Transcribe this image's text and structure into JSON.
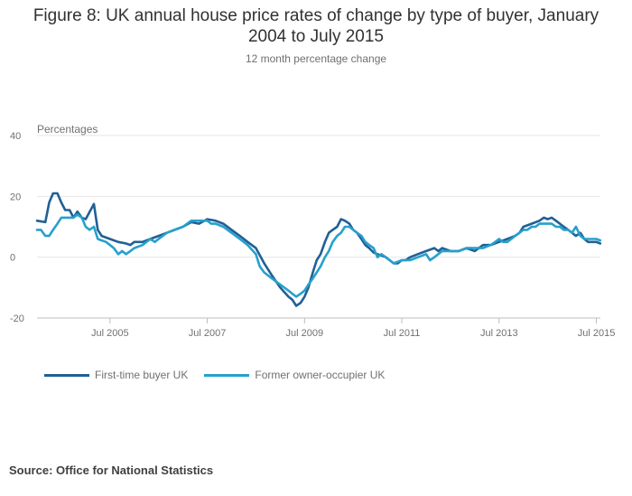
{
  "title": "Figure 8: UK annual house price rates of change by type of buyer, January 2004 to July 2015",
  "subtitle": "12 month percentage change",
  "source": "Source: Office for National Statistics",
  "colors": {
    "series1": "#206095",
    "series2": "#27a0cc",
    "grid": "#e6e6e6",
    "axis": "#707071"
  },
  "chart_data": {
    "type": "line",
    "title": "Figure 8: UK annual house price rates of change by type of buyer, January 2004 to July 2015",
    "subtitle": "12 month percentage change",
    "ylabel": "Percentages",
    "xlabel": "",
    "ylim": [
      -20,
      40
    ],
    "yticks": [
      -20,
      0,
      20,
      40
    ],
    "xlim": [
      2004.0,
      2015.583
    ],
    "xticks": [
      {
        "x": 2005.5,
        "label": "Jul 2005"
      },
      {
        "x": 2007.5,
        "label": "Jul 2007"
      },
      {
        "x": 2009.5,
        "label": "Jul 2009"
      },
      {
        "x": 2011.5,
        "label": "Jul 2011"
      },
      {
        "x": 2013.5,
        "label": "Jul 2013"
      },
      {
        "x": 2015.5,
        "label": "Jul 2015"
      }
    ],
    "legend_position": "bottom-left",
    "series": [
      {
        "name": "First-time buyer UK",
        "points": [
          [
            2004.0,
            12
          ],
          [
            2004.17,
            11.5
          ],
          [
            2004.25,
            18
          ],
          [
            2004.33,
            21
          ],
          [
            2004.42,
            21
          ],
          [
            2004.5,
            18
          ],
          [
            2004.58,
            15.5
          ],
          [
            2004.67,
            15.5
          ],
          [
            2004.75,
            13
          ],
          [
            2004.83,
            15
          ],
          [
            2004.92,
            13
          ],
          [
            2005.0,
            12.5
          ],
          [
            2005.17,
            17.5
          ],
          [
            2005.25,
            9
          ],
          [
            2005.33,
            7
          ],
          [
            2005.5,
            6
          ],
          [
            2005.67,
            5
          ],
          [
            2005.83,
            4.5
          ],
          [
            2005.92,
            4
          ],
          [
            2006.0,
            5
          ],
          [
            2006.17,
            5
          ],
          [
            2006.33,
            6
          ],
          [
            2006.5,
            7
          ],
          [
            2006.67,
            8
          ],
          [
            2006.83,
            9
          ],
          [
            2007.0,
            10
          ],
          [
            2007.17,
            11.5
          ],
          [
            2007.33,
            11
          ],
          [
            2007.5,
            12.5
          ],
          [
            2007.67,
            12
          ],
          [
            2007.83,
            11
          ],
          [
            2008.0,
            9
          ],
          [
            2008.17,
            7
          ],
          [
            2008.33,
            5
          ],
          [
            2008.5,
            3
          ],
          [
            2008.67,
            -2
          ],
          [
            2008.83,
            -6
          ],
          [
            2009.0,
            -10
          ],
          [
            2009.17,
            -13
          ],
          [
            2009.25,
            -14
          ],
          [
            2009.33,
            -16
          ],
          [
            2009.42,
            -15
          ],
          [
            2009.5,
            -13
          ],
          [
            2009.58,
            -10
          ],
          [
            2009.67,
            -5
          ],
          [
            2009.75,
            -1
          ],
          [
            2009.83,
            1
          ],
          [
            2009.92,
            5
          ],
          [
            2010.0,
            8
          ],
          [
            2010.08,
            9
          ],
          [
            2010.17,
            10
          ],
          [
            2010.25,
            12.5
          ],
          [
            2010.33,
            12
          ],
          [
            2010.42,
            11
          ],
          [
            2010.5,
            9
          ],
          [
            2010.58,
            8
          ],
          [
            2010.67,
            6
          ],
          [
            2010.75,
            4
          ],
          [
            2010.83,
            3
          ],
          [
            2010.92,
            1.5
          ],
          [
            2011.0,
            1
          ],
          [
            2011.17,
            0
          ],
          [
            2011.25,
            -1
          ],
          [
            2011.33,
            -2
          ],
          [
            2011.42,
            -2
          ],
          [
            2011.5,
            -1
          ],
          [
            2011.58,
            -1
          ],
          [
            2011.67,
            0
          ],
          [
            2011.83,
            1
          ],
          [
            2012.0,
            2
          ],
          [
            2012.17,
            3
          ],
          [
            2012.25,
            2
          ],
          [
            2012.33,
            3
          ],
          [
            2012.5,
            2
          ],
          [
            2012.67,
            2
          ],
          [
            2012.83,
            3
          ],
          [
            2013.0,
            2
          ],
          [
            2013.17,
            4
          ],
          [
            2013.33,
            4
          ],
          [
            2013.5,
            5
          ],
          [
            2013.67,
            6
          ],
          [
            2013.83,
            7
          ],
          [
            2013.92,
            8
          ],
          [
            2014.0,
            10
          ],
          [
            2014.17,
            11
          ],
          [
            2014.33,
            12
          ],
          [
            2014.42,
            13
          ],
          [
            2014.5,
            12.5
          ],
          [
            2014.58,
            13
          ],
          [
            2014.67,
            12
          ],
          [
            2014.75,
            11
          ],
          [
            2014.83,
            10
          ],
          [
            2014.92,
            9
          ],
          [
            2015.0,
            8
          ],
          [
            2015.08,
            7
          ],
          [
            2015.17,
            8
          ],
          [
            2015.25,
            6
          ],
          [
            2015.33,
            5
          ],
          [
            2015.42,
            5
          ],
          [
            2015.5,
            5
          ],
          [
            2015.58,
            4.5
          ]
        ]
      },
      {
        "name": "Former owner-occupier UK",
        "points": [
          [
            2004.0,
            9
          ],
          [
            2004.08,
            9
          ],
          [
            2004.17,
            7
          ],
          [
            2004.25,
            7
          ],
          [
            2004.33,
            9
          ],
          [
            2004.42,
            11
          ],
          [
            2004.5,
            13
          ],
          [
            2004.58,
            13
          ],
          [
            2004.75,
            13
          ],
          [
            2004.83,
            14
          ],
          [
            2004.92,
            13
          ],
          [
            2005.0,
            10
          ],
          [
            2005.08,
            9
          ],
          [
            2005.17,
            10
          ],
          [
            2005.25,
            6
          ],
          [
            2005.33,
            5.5
          ],
          [
            2005.42,
            5
          ],
          [
            2005.5,
            4
          ],
          [
            2005.58,
            3
          ],
          [
            2005.67,
            1
          ],
          [
            2005.75,
            2
          ],
          [
            2005.83,
            1
          ],
          [
            2005.92,
            2
          ],
          [
            2006.0,
            3
          ],
          [
            2006.17,
            4
          ],
          [
            2006.33,
            6
          ],
          [
            2006.42,
            5
          ],
          [
            2006.5,
            6
          ],
          [
            2006.67,
            8
          ],
          [
            2006.83,
            9
          ],
          [
            2007.0,
            10
          ],
          [
            2007.17,
            12
          ],
          [
            2007.33,
            12
          ],
          [
            2007.5,
            12
          ],
          [
            2007.58,
            11
          ],
          [
            2007.67,
            11
          ],
          [
            2007.83,
            10
          ],
          [
            2008.0,
            8
          ],
          [
            2008.17,
            6
          ],
          [
            2008.33,
            4
          ],
          [
            2008.5,
            1
          ],
          [
            2008.58,
            -3
          ],
          [
            2008.67,
            -5
          ],
          [
            2008.75,
            -6
          ],
          [
            2008.83,
            -7
          ],
          [
            2009.0,
            -9
          ],
          [
            2009.17,
            -11
          ],
          [
            2009.25,
            -12
          ],
          [
            2009.33,
            -13
          ],
          [
            2009.42,
            -12
          ],
          [
            2009.5,
            -11
          ],
          [
            2009.58,
            -9
          ],
          [
            2009.67,
            -7
          ],
          [
            2009.75,
            -5
          ],
          [
            2009.83,
            -3
          ],
          [
            2009.92,
            0
          ],
          [
            2010.0,
            2
          ],
          [
            2010.08,
            5
          ],
          [
            2010.17,
            7
          ],
          [
            2010.25,
            8
          ],
          [
            2010.33,
            10
          ],
          [
            2010.42,
            10
          ],
          [
            2010.5,
            9
          ],
          [
            2010.58,
            8
          ],
          [
            2010.67,
            7
          ],
          [
            2010.75,
            5
          ],
          [
            2010.83,
            4
          ],
          [
            2010.92,
            3
          ],
          [
            2011.0,
            0
          ],
          [
            2011.08,
            1
          ],
          [
            2011.17,
            0
          ],
          [
            2011.25,
            -1
          ],
          [
            2011.33,
            -2
          ],
          [
            2011.42,
            -1.5
          ],
          [
            2011.5,
            -1
          ],
          [
            2011.67,
            -1
          ],
          [
            2011.83,
            0
          ],
          [
            2012.0,
            1
          ],
          [
            2012.08,
            -1
          ],
          [
            2012.17,
            0
          ],
          [
            2012.25,
            1
          ],
          [
            2012.33,
            2
          ],
          [
            2012.5,
            2
          ],
          [
            2012.67,
            2
          ],
          [
            2012.83,
            3
          ],
          [
            2013.0,
            3
          ],
          [
            2013.17,
            3
          ],
          [
            2013.33,
            4
          ],
          [
            2013.42,
            5
          ],
          [
            2013.5,
            6
          ],
          [
            2013.58,
            5
          ],
          [
            2013.67,
            5
          ],
          [
            2013.75,
            6
          ],
          [
            2013.83,
            7
          ],
          [
            2013.92,
            8
          ],
          [
            2014.0,
            9
          ],
          [
            2014.08,
            9
          ],
          [
            2014.17,
            10
          ],
          [
            2014.25,
            10
          ],
          [
            2014.33,
            11
          ],
          [
            2014.42,
            11
          ],
          [
            2014.5,
            11
          ],
          [
            2014.58,
            11
          ],
          [
            2014.67,
            10
          ],
          [
            2014.75,
            10
          ],
          [
            2014.83,
            9
          ],
          [
            2014.92,
            9
          ],
          [
            2015.0,
            8
          ],
          [
            2015.08,
            10
          ],
          [
            2015.17,
            7
          ],
          [
            2015.25,
            6
          ],
          [
            2015.33,
            6
          ],
          [
            2015.42,
            6
          ],
          [
            2015.5,
            6
          ],
          [
            2015.58,
            5.5
          ]
        ]
      }
    ]
  }
}
